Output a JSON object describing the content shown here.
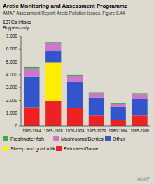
{
  "chart_data": {
    "type": "bar",
    "stacked": true,
    "title": "Arctic Monitoring and Assessment Programme",
    "subtitle": "AMAP Assessment Report: Arctic Pollution Issues, Figure 8.44",
    "ylabel": [
      "137Cs intake",
      "Bq/person/y"
    ],
    "annotations": [
      "AMAP"
    ],
    "categories": [
      "1960-1964",
      "1965-1969",
      "1970-1974",
      "1975-1979",
      "1980-1984",
      "1985-1989"
    ],
    "series": [
      {
        "name": "Reindeer/Game",
        "color": "#ee2222",
        "values": [
          1450,
          1950,
          1400,
          800,
          450,
          800
        ]
      },
      {
        "name": "Sheep and goat milk",
        "color": "#ffee00",
        "values": [
          0,
          3000,
          0,
          0,
          0,
          0
        ]
      },
      {
        "name": "Other",
        "color": "#3355cc",
        "values": [
          2400,
          900,
          2050,
          1400,
          1050,
          1300
        ]
      },
      {
        "name": "Mushrooms/Berries",
        "color": "#cc77cc",
        "values": [
          650,
          600,
          450,
          350,
          250,
          350
        ]
      },
      {
        "name": "Freshwater fish",
        "color": "#44aa44",
        "values": [
          100,
          100,
          100,
          50,
          50,
          100
        ]
      }
    ],
    "ylim": [
      0,
      7000
    ],
    "yticks": [
      0,
      {
        "value": 1000,
        "label": "1.000"
      },
      {
        "value": 2000,
        "label": "2.000"
      },
      {
        "value": 3000,
        "label": "3.000"
      },
      {
        "value": 4000,
        "label": "4.000"
      },
      {
        "value": 5000,
        "label": "5.000"
      },
      {
        "value": 6000,
        "label": "6.000"
      },
      {
        "value": 7000,
        "label": "7.000"
      }
    ],
    "grid": false,
    "legend": "bottom"
  }
}
